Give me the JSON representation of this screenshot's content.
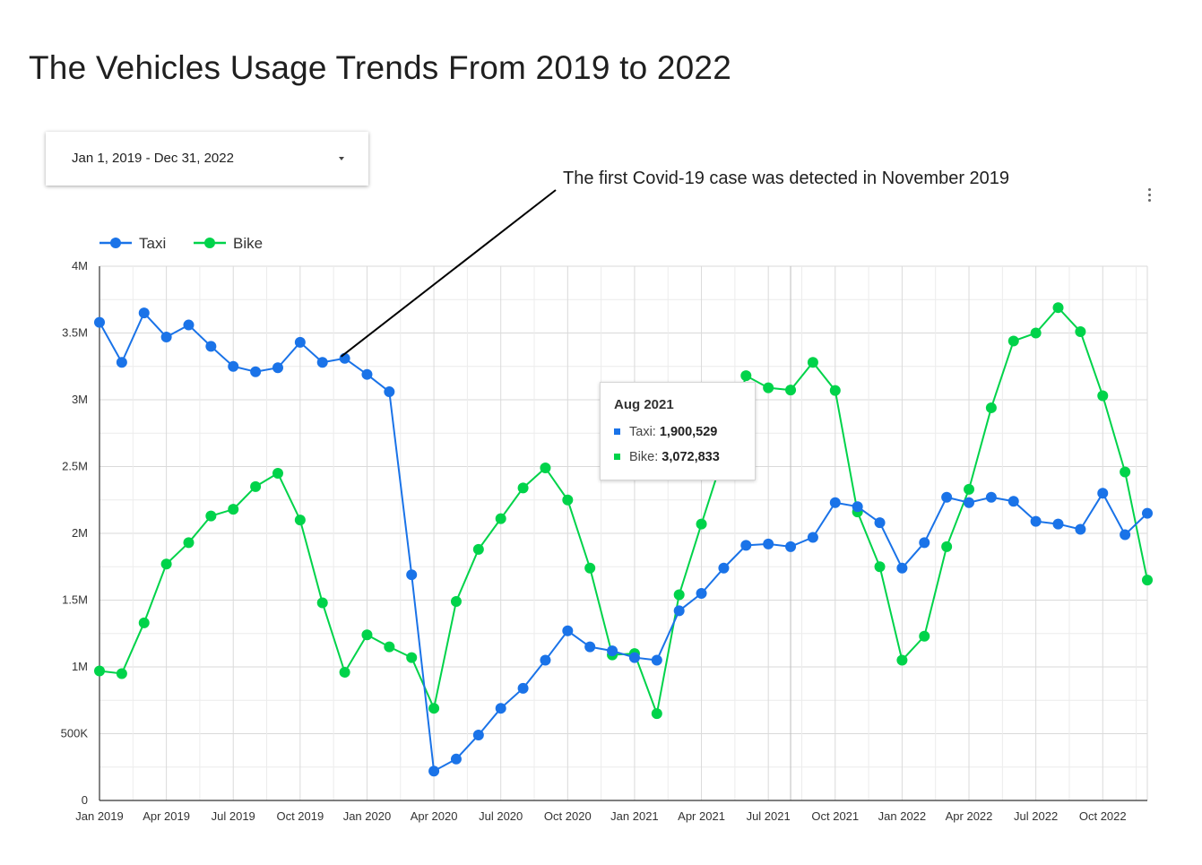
{
  "title": "The Vehicles Usage Trends From 2019 to 2022",
  "date_range": {
    "label": "Jan 1, 2019 - Dec 31, 2022",
    "icon": "caret-down-icon"
  },
  "menu_icon": "more-vert-icon",
  "annotation": {
    "text": "The first Covid-19 case was detected in November 2019",
    "target_month": "Dec 2019"
  },
  "tooltip": {
    "title": "Aug 2021",
    "rows": [
      {
        "name": "Taxi",
        "label": "Taxi:",
        "value": "1,900,529"
      },
      {
        "name": "Bike",
        "label": "Bike:",
        "value": "3,072,833"
      }
    ]
  },
  "chart_data": {
    "type": "line",
    "title": "The Vehicles Usage Trends From 2019 to 2022",
    "x": [
      "Jan 2019",
      "Feb 2019",
      "Mar 2019",
      "Apr 2019",
      "May 2019",
      "Jun 2019",
      "Jul 2019",
      "Aug 2019",
      "Sep 2019",
      "Oct 2019",
      "Nov 2019",
      "Dec 2019",
      "Jan 2020",
      "Feb 2020",
      "Mar 2020",
      "Apr 2020",
      "May 2020",
      "Jun 2020",
      "Jul 2020",
      "Aug 2020",
      "Sep 2020",
      "Oct 2020",
      "Nov 2020",
      "Dec 2020",
      "Jan 2021",
      "Feb 2021",
      "Mar 2021",
      "Apr 2021",
      "May 2021",
      "Jun 2021",
      "Jul 2021",
      "Aug 2021",
      "Sep 2021",
      "Oct 2021",
      "Nov 2021",
      "Dec 2021",
      "Jan 2022",
      "Feb 2022",
      "Mar 2022",
      "Apr 2022",
      "May 2022",
      "Jun 2022",
      "Jul 2022",
      "Aug 2022",
      "Sep 2022",
      "Oct 2022",
      "Nov 2022",
      "Dec 2022"
    ],
    "tick_labels": [
      "Jan 2019",
      "Apr 2019",
      "Jul 2019",
      "Oct 2019",
      "Jan 2020",
      "Apr 2020",
      "Jul 2020",
      "Oct 2020",
      "Jan 2021",
      "Apr 2021",
      "Jul 2021",
      "Oct 2021",
      "Jan 2022",
      "Apr 2022",
      "Jul 2022",
      "Oct 2022"
    ],
    "y_ticks": [
      {
        "value": 0,
        "label": "0"
      },
      {
        "value": 500000,
        "label": "500K"
      },
      {
        "value": 1000000,
        "label": "1M"
      },
      {
        "value": 1500000,
        "label": "1.5M"
      },
      {
        "value": 2000000,
        "label": "2M"
      },
      {
        "value": 2500000,
        "label": "2.5M"
      },
      {
        "value": 3000000,
        "label": "3M"
      },
      {
        "value": 3500000,
        "label": "3.5M"
      },
      {
        "value": 4000000,
        "label": "4M"
      }
    ],
    "ylim": [
      0,
      4000000
    ],
    "grid": true,
    "legend": "top-left",
    "series": [
      {
        "name": "Taxi",
        "color": "#1a73e8",
        "values": [
          3580000,
          3280000,
          3650000,
          3470000,
          3560000,
          3400000,
          3250000,
          3210000,
          3240000,
          3430000,
          3280000,
          3310000,
          3190000,
          3060000,
          1690000,
          220000,
          310000,
          490000,
          690000,
          840000,
          1050000,
          1270000,
          1150000,
          1120000,
          1070000,
          1050000,
          1420000,
          1550000,
          1740000,
          1910000,
          1920000,
          1900529,
          1970000,
          2230000,
          2200000,
          2080000,
          1740000,
          1930000,
          2270000,
          2230000,
          2270000,
          2240000,
          2090000,
          2070000,
          2030000,
          2300000,
          1990000,
          2150000
        ]
      },
      {
        "name": "Bike",
        "color": "#00d34a",
        "values": [
          970000,
          950000,
          1330000,
          1770000,
          1930000,
          2130000,
          2180000,
          2350000,
          2450000,
          2100000,
          1480000,
          960000,
          1240000,
          1150000,
          1070000,
          690000,
          1490000,
          1880000,
          2110000,
          2340000,
          2490000,
          2250000,
          1740000,
          1090000,
          1100000,
          650000,
          1540000,
          2070000,
          2590000,
          3180000,
          3090000,
          3072833,
          3280000,
          3070000,
          2160000,
          1750000,
          1050000,
          1230000,
          1900000,
          2330000,
          2940000,
          3440000,
          3500000,
          3690000,
          3510000,
          3030000,
          2460000,
          1650000
        ]
      }
    ]
  }
}
